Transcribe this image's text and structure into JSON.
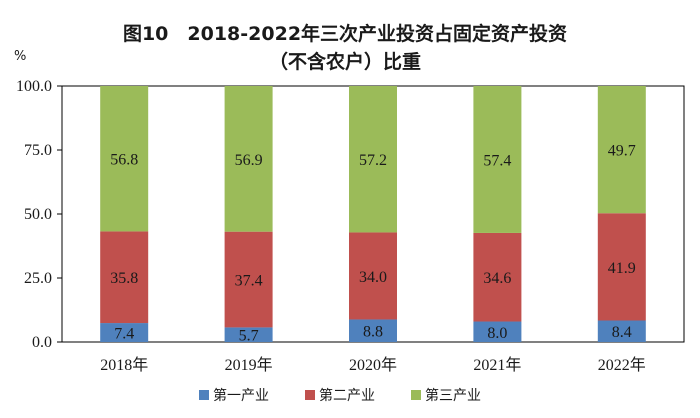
{
  "chart_data": {
    "type": "bar",
    "stacked": true,
    "title_line1": "图10　2018-2022年三次产业投资占固定资产投资",
    "title_line2": "（不含农户）比重",
    "y_unit": "%",
    "ylim": [
      0,
      100
    ],
    "y_ticks": [
      "100.0",
      "75.0",
      "50.0",
      "25.0",
      "0.0"
    ],
    "y_tick_values": [
      100,
      75,
      50,
      25,
      0
    ],
    "grid": false,
    "legend_position": "bottom",
    "categories": [
      "2018年",
      "2019年",
      "2020年",
      "2021年",
      "2022年"
    ],
    "series": [
      {
        "name": "第一产业",
        "color": "#4f81bd",
        "values": [
          7.4,
          5.7,
          8.8,
          8.0,
          8.4
        ],
        "labels": [
          "7.4",
          "5.7",
          "8.8",
          "8.0",
          "8.4"
        ]
      },
      {
        "name": "第二产业",
        "color": "#c0504d",
        "values": [
          35.8,
          37.4,
          34.0,
          34.6,
          41.9
        ],
        "labels": [
          "35.8",
          "37.4",
          "34.0",
          "34.6",
          "41.9"
        ]
      },
      {
        "name": "第三产业",
        "color": "#9bbb59",
        "values": [
          56.8,
          56.9,
          57.2,
          57.4,
          49.7
        ],
        "labels": [
          "56.8",
          "56.9",
          "57.2",
          "57.4",
          "49.7"
        ]
      }
    ]
  }
}
